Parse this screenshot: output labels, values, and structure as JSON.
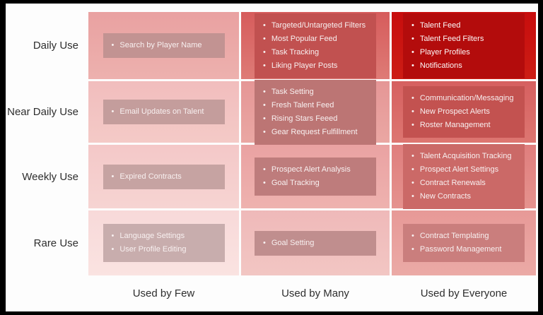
{
  "rows": [
    {
      "label": "Daily Use"
    },
    {
      "label": "Near Daily Use"
    },
    {
      "label": "Weekly Use"
    },
    {
      "label": "Rare Use"
    }
  ],
  "columns": [
    {
      "label": "Used by Few"
    },
    {
      "label": "Used by Many"
    },
    {
      "label": "Used by Everyone"
    }
  ],
  "cells": {
    "r0c0": {
      "items": [
        "Search by Player Name"
      ]
    },
    "r0c1": {
      "items": [
        "Targeted/Untargeted Filters",
        "Most Popular Feed",
        "Task Tracking",
        "Liking Player Posts"
      ]
    },
    "r0c2": {
      "items": [
        "Talent Feed",
        "Talent Feed Filters",
        "Player Profiles",
        "Notifications"
      ]
    },
    "r1c0": {
      "items": [
        "Email Updates on Talent"
      ]
    },
    "r1c1": {
      "items": [
        "Task Setting",
        "Fresh Talent Feed",
        "Rising Stars Feeed",
        "Gear Request Fulfillment"
      ]
    },
    "r1c2": {
      "items": [
        "Communication/Messaging",
        "New Prospect Alerts",
        "Roster Management"
      ]
    },
    "r2c0": {
      "items": [
        "Expired Contracts"
      ]
    },
    "r2c1": {
      "items": [
        "Prospect Alert Analysis",
        "Goal Tracking"
      ]
    },
    "r2c2": {
      "items": [
        "Talent Acquisition Tracking",
        "Prospect Alert Settings",
        "Contract Renewals",
        "New Contracts"
      ]
    },
    "r3c0": {
      "items": [
        "Language Settings",
        "User Profile Editing"
      ]
    },
    "r3c1": {
      "items": [
        "Goal Setting"
      ]
    },
    "r3c2": {
      "items": [
        "Contract Templating",
        "Password Management"
      ]
    }
  },
  "bullet_glyph": "•",
  "palette": {
    "frame_border": "#000000",
    "canvas": "#fdfdfd",
    "label_text": "#2e2e2e",
    "item_text": "#f8f0f0",
    "cells": {
      "r0c0": {
        "bg": "#e9a1a1",
        "box": "#c29392"
      },
      "r0c1": {
        "bg": "#d65c5c",
        "box": "#c15150"
      },
      "r0c2": {
        "bg": "#c80d0d",
        "box": "#b30c0c"
      },
      "r1c0": {
        "bg": "#f1bdbd",
        "box": "#c49d9c"
      },
      "r1c1": {
        "bg": "#e59696",
        "box": "#bc7574"
      },
      "r1c2": {
        "bg": "#d66060",
        "box": "#c35250"
      },
      "r2c0": {
        "bg": "#f4c8c8",
        "box": "#c6a3a2"
      },
      "r2c1": {
        "bg": "#eaa2a2",
        "box": "#be7c7c"
      },
      "r2c2": {
        "bg": "#df7e7d",
        "box": "#cb6967"
      },
      "r3c0": {
        "bg": "#f8d9d9",
        "box": "#c8adad"
      },
      "r3c1": {
        "bg": "#efb9b9",
        "box": "#c08e8e"
      },
      "r3c2": {
        "bg": "#e79997",
        "box": "#ca7e7d"
      }
    }
  }
}
